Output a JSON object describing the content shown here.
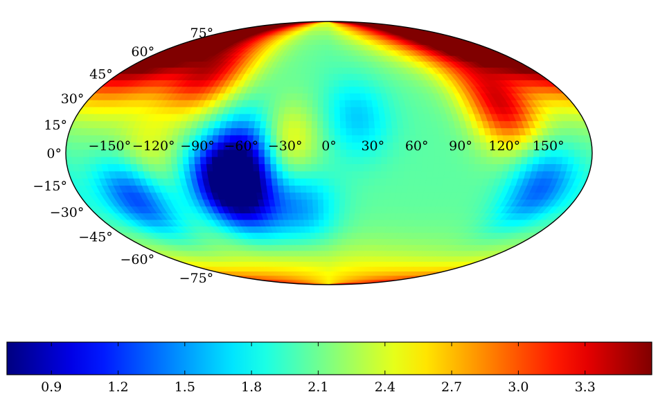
{
  "chart_data": {
    "type": "heatmap",
    "projection": "mollweide",
    "colormap": "jet",
    "title": "",
    "xlabel": "",
    "ylabel": "",
    "value_range": [
      0.7,
      3.6
    ],
    "longitude_ticks": [
      "−150°",
      "−120°",
      "−90°",
      "−60°",
      "−30°",
      "0°",
      "30°",
      "60°",
      "90°",
      "120°",
      "150°"
    ],
    "longitude_tick_values": [
      -150,
      -120,
      -90,
      -60,
      -30,
      0,
      30,
      60,
      90,
      120,
      150
    ],
    "latitude_ticks": [
      "75°",
      "60°",
      "45°",
      "30°",
      "15°",
      "0°",
      "−15°",
      "−30°",
      "−45°",
      "−60°",
      "−75°"
    ],
    "latitude_tick_values": [
      75,
      60,
      45,
      30,
      15,
      0,
      -15,
      -30,
      -45,
      -60,
      -75
    ],
    "colorbar": {
      "orientation": "horizontal",
      "tick_labels": [
        "0.9",
        "1.2",
        "1.5",
        "1.8",
        "2.1",
        "2.4",
        "2.7",
        "3.0",
        "3.3"
      ],
      "tick_values": [
        0.9,
        1.2,
        1.5,
        1.8,
        2.1,
        2.4,
        2.7,
        3.0,
        3.3
      ]
    },
    "features": [
      {
        "desc": "minimum",
        "lon": -75,
        "lat": -15,
        "value": 0.8
      },
      {
        "desc": "low",
        "lon": -55,
        "lat": 0,
        "value": 1.05
      },
      {
        "desc": "low",
        "lon": -60,
        "lat": -25,
        "value": 1.2
      },
      {
        "desc": "low",
        "lon": -140,
        "lat": -25,
        "value": 1.1
      },
      {
        "desc": "low",
        "lon": 150,
        "lat": -20,
        "value": 1.25
      },
      {
        "desc": "low",
        "lon": 20,
        "lat": 20,
        "value": 1.6
      },
      {
        "desc": "low",
        "lon": -20,
        "lat": -30,
        "value": 1.45
      },
      {
        "desc": "local high",
        "lon": 125,
        "lat": 25,
        "value": 3.3
      },
      {
        "desc": "local high",
        "lon": -100,
        "lat": 45,
        "value": 3.2
      },
      {
        "desc": "local high",
        "lon": -30,
        "lat": 5,
        "value": 2.7
      },
      {
        "desc": "local high",
        "lon": -125,
        "lat": 0,
        "value": 2.5
      },
      {
        "desc": "high",
        "lon": 0,
        "lat": -85,
        "value": 2.6
      },
      {
        "desc": "high",
        "lon": 150,
        "lat": 70,
        "value": 3.5
      },
      {
        "desc": "high",
        "lon": -160,
        "lat": 55,
        "value": 3.2
      }
    ]
  }
}
